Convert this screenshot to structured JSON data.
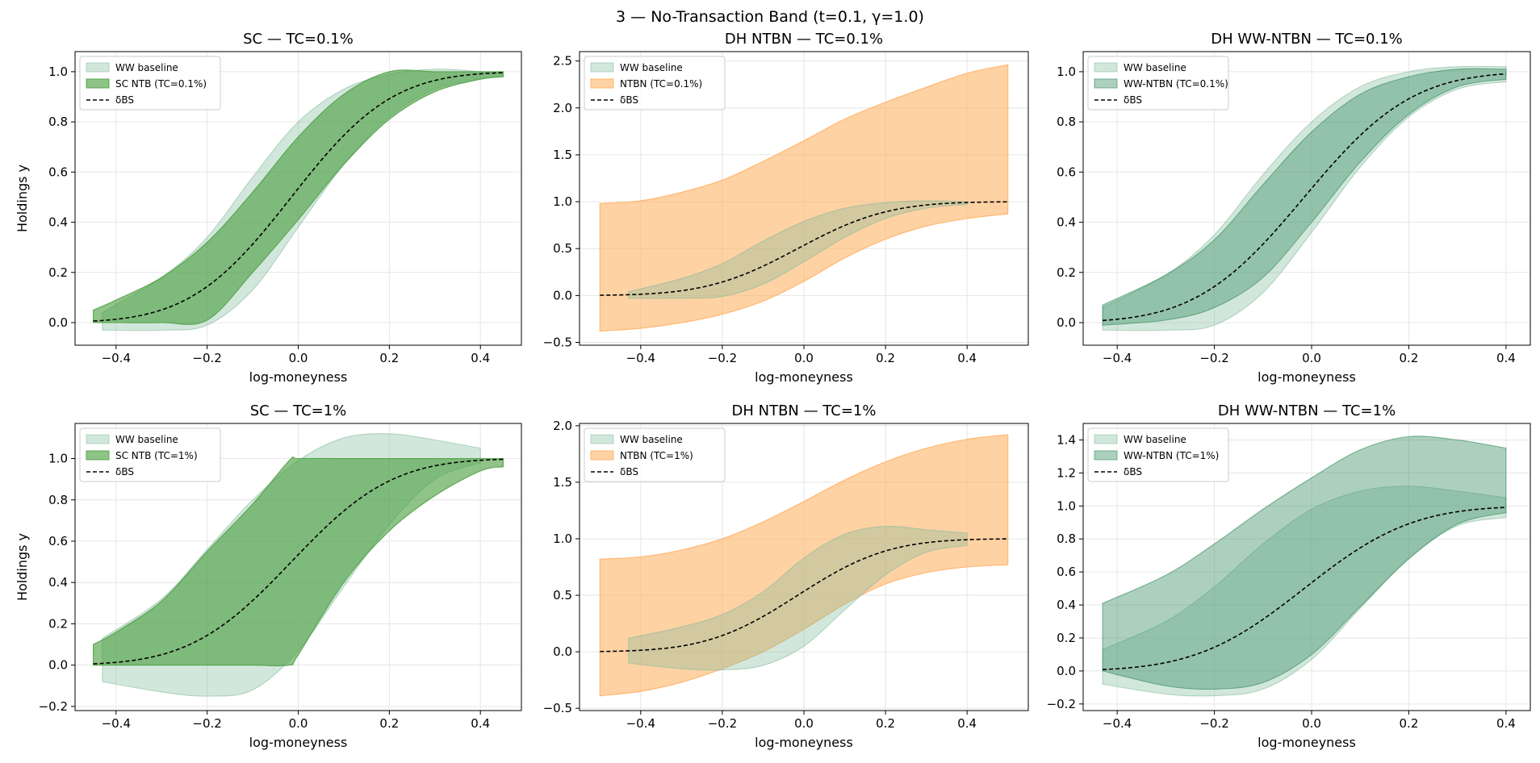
{
  "figure": {
    "title": "3 — No-Transaction Band  (t=0.1, γ=1.0)"
  },
  "colors": {
    "ww_fill": "#7fb99a",
    "sc_fill": "#4a9e3f",
    "ntbn_fill": "#ffad5a",
    "wwntbn_fill": "#3c8f63",
    "delta_line": "#000000",
    "grid": "#e6e6e6"
  },
  "chart_data": [
    {
      "type": "area",
      "title": "SC — TC=0.1%",
      "xlabel": "log-moneyness",
      "ylabel": "Holdings y",
      "xlim": [
        -0.49,
        0.49
      ],
      "ylim": [
        -0.09,
        1.08
      ],
      "xticks": [
        -0.4,
        -0.2,
        0.0,
        0.2,
        0.4
      ],
      "xtick_labels": [
        "−0.4",
        "−0.2",
        "0.0",
        "0.2",
        "0.4"
      ],
      "yticks": [
        0.0,
        0.2,
        0.4,
        0.6,
        0.8,
        1.0
      ],
      "ytick_labels": [
        "0.0",
        "0.2",
        "0.4",
        "0.6",
        "0.8",
        "1.0"
      ],
      "legend": {
        "position": "top-left",
        "entries": [
          "WW baseline",
          "SC NTB (TC=0.1%)",
          "δBS"
        ]
      },
      "series": [
        {
          "name": "WW baseline",
          "style": "ww",
          "x": [
            -0.43,
            -0.3,
            -0.2,
            -0.1,
            0.0,
            0.1,
            0.2,
            0.3,
            0.4,
            0.45
          ],
          "lower": [
            -0.03,
            -0.03,
            -0.01,
            0.13,
            0.38,
            0.63,
            0.82,
            0.93,
            0.97,
            0.98
          ],
          "upper": [
            0.04,
            0.18,
            0.34,
            0.58,
            0.8,
            0.93,
            0.99,
            1.01,
            1.0,
            0.99
          ]
        },
        {
          "name": "SC NTB (TC=0.1%)",
          "style": "sc",
          "x": [
            -0.45,
            -0.4,
            -0.3,
            -0.2,
            -0.1,
            0.0,
            0.1,
            0.2,
            0.3,
            0.4,
            0.45
          ],
          "lower": [
            0.0,
            0.0,
            0.0,
            0.01,
            0.2,
            0.41,
            0.63,
            0.81,
            0.92,
            0.97,
            0.98
          ],
          "upper": [
            0.05,
            0.09,
            0.18,
            0.32,
            0.52,
            0.74,
            0.91,
            1.0,
            1.0,
            1.0,
            1.0
          ]
        }
      ],
      "delta": {
        "name": "δBS",
        "x_range": [
          -0.45,
          0.45
        ]
      }
    },
    {
      "type": "area",
      "title": "DH NTBN — TC=0.1%",
      "xlabel": "log-moneyness",
      "ylabel": "",
      "xlim": [
        -0.55,
        0.55
      ],
      "ylim": [
        -0.53,
        2.6
      ],
      "xticks": [
        -0.4,
        -0.2,
        0.0,
        0.2,
        0.4
      ],
      "xtick_labels": [
        "−0.4",
        "−0.2",
        "0.0",
        "0.2",
        "0.4"
      ],
      "yticks": [
        -0.5,
        0.0,
        0.5,
        1.0,
        1.5,
        2.0,
        2.5
      ],
      "ytick_labels": [
        "−0.5",
        "0.0",
        "0.5",
        "1.0",
        "1.5",
        "2.0",
        "2.5"
      ],
      "legend": {
        "position": "top-left",
        "entries": [
          "WW baseline",
          "NTBN (TC=0.1%)",
          "δBS"
        ]
      },
      "series": [
        {
          "name": "NTBN (TC=0.1%)",
          "style": "ntbn",
          "x": [
            -0.5,
            -0.4,
            -0.3,
            -0.2,
            -0.1,
            0.0,
            0.1,
            0.2,
            0.3,
            0.4,
            0.5
          ],
          "lower": [
            -0.38,
            -0.35,
            -0.29,
            -0.2,
            -0.06,
            0.15,
            0.4,
            0.6,
            0.74,
            0.82,
            0.87
          ],
          "upper": [
            0.98,
            1.01,
            1.1,
            1.23,
            1.43,
            1.65,
            1.88,
            2.06,
            2.22,
            2.37,
            2.46
          ]
        },
        {
          "name": "WW baseline",
          "style": "ww",
          "x": [
            -0.43,
            -0.3,
            -0.2,
            -0.1,
            0.0,
            0.1,
            0.2,
            0.3,
            0.4
          ],
          "lower": [
            -0.03,
            -0.03,
            -0.01,
            0.12,
            0.36,
            0.62,
            0.82,
            0.93,
            0.97
          ],
          "upper": [
            0.04,
            0.18,
            0.34,
            0.58,
            0.79,
            0.93,
            0.99,
            1.01,
            1.0
          ]
        }
      ],
      "delta": {
        "name": "δBS",
        "x_range": [
          -0.5,
          0.5
        ]
      }
    },
    {
      "type": "area",
      "title": "DH WW-NTBN — TC=0.1%",
      "xlabel": "log-moneyness",
      "ylabel": "",
      "xlim": [
        -0.47,
        0.45
      ],
      "ylim": [
        -0.09,
        1.08
      ],
      "xticks": [
        -0.4,
        -0.2,
        0.0,
        0.2,
        0.4
      ],
      "xtick_labels": [
        "−0.4",
        "−0.2",
        "0.0",
        "0.2",
        "0.4"
      ],
      "yticks": [
        0.0,
        0.2,
        0.4,
        0.6,
        0.8,
        1.0
      ],
      "ytick_labels": [
        "0.0",
        "0.2",
        "0.4",
        "0.6",
        "0.8",
        "1.0"
      ],
      "legend": {
        "position": "top-left",
        "entries": [
          "WW baseline",
          "WW-NTBN (TC=0.1%)",
          "δBS"
        ]
      },
      "series": [
        {
          "name": "WW baseline",
          "style": "ww",
          "x": [
            -0.43,
            -0.3,
            -0.2,
            -0.1,
            0.0,
            0.1,
            0.2,
            0.3,
            0.4
          ],
          "lower": [
            -0.03,
            -0.03,
            -0.01,
            0.12,
            0.36,
            0.62,
            0.82,
            0.93,
            0.96
          ],
          "upper": [
            0.06,
            0.19,
            0.35,
            0.59,
            0.8,
            0.94,
            1.0,
            1.02,
            1.02
          ]
        },
        {
          "name": "WW-NTBN (TC=0.1%)",
          "style": "wwntbn",
          "x": [
            -0.43,
            -0.3,
            -0.2,
            -0.1,
            0.0,
            0.1,
            0.2,
            0.3,
            0.4
          ],
          "lower": [
            -0.01,
            0.01,
            0.06,
            0.18,
            0.4,
            0.64,
            0.83,
            0.94,
            0.97
          ],
          "upper": [
            0.07,
            0.19,
            0.33,
            0.55,
            0.76,
            0.91,
            0.98,
            1.01,
            1.01
          ]
        }
      ],
      "delta": {
        "name": "δBS",
        "x_range": [
          -0.43,
          0.4
        ]
      }
    },
    {
      "type": "area",
      "title": "SC — TC=1%",
      "xlabel": "log-moneyness",
      "ylabel": "Holdings y",
      "xlim": [
        -0.49,
        0.49
      ],
      "ylim": [
        -0.22,
        1.17
      ],
      "xticks": [
        -0.4,
        -0.2,
        0.0,
        0.2,
        0.4
      ],
      "xtick_labels": [
        "−0.4",
        "−0.2",
        "0.0",
        "0.2",
        "0.4"
      ],
      "yticks": [
        -0.2,
        0.0,
        0.2,
        0.4,
        0.6,
        0.8,
        1.0
      ],
      "ytick_labels": [
        "−0.2",
        "0.0",
        "0.2",
        "0.4",
        "0.6",
        "0.8",
        "1.0"
      ],
      "legend": {
        "position": "top-left",
        "entries": [
          "WW baseline",
          "SC NTB (TC=1%)",
          "δBS"
        ]
      },
      "series": [
        {
          "name": "WW baseline",
          "style": "ww",
          "x": [
            -0.43,
            -0.3,
            -0.2,
            -0.1,
            0.0,
            0.1,
            0.2,
            0.3,
            0.4
          ],
          "lower": [
            -0.08,
            -0.13,
            -0.15,
            -0.12,
            0.07,
            0.38,
            0.68,
            0.9,
            0.98
          ],
          "upper": [
            0.13,
            0.32,
            0.56,
            0.8,
            0.99,
            1.1,
            1.12,
            1.09,
            1.05
          ]
        },
        {
          "name": "SC NTB (TC=1%)",
          "style": "sc",
          "x": [
            -0.45,
            -0.4,
            -0.3,
            -0.2,
            -0.1,
            -0.02,
            0.0,
            0.1,
            0.2,
            0.3,
            0.4,
            0.45
          ],
          "lower": [
            0.0,
            0.0,
            0.0,
            0.0,
            0.0,
            0.0,
            0.05,
            0.4,
            0.65,
            0.82,
            0.94,
            0.96
          ],
          "upper": [
            0.1,
            0.16,
            0.31,
            0.55,
            0.78,
            0.99,
            1.0,
            1.0,
            1.0,
            1.0,
            1.0,
            1.0
          ]
        }
      ],
      "delta": {
        "name": "δBS",
        "x_range": [
          -0.45,
          0.45
        ]
      }
    },
    {
      "type": "area",
      "title": "DH NTBN — TC=1%",
      "xlabel": "log-moneyness",
      "ylabel": "",
      "xlim": [
        -0.55,
        0.55
      ],
      "ylim": [
        -0.52,
        2.02
      ],
      "xticks": [
        -0.4,
        -0.2,
        0.0,
        0.2,
        0.4
      ],
      "xtick_labels": [
        "−0.4",
        "−0.2",
        "0.0",
        "0.2",
        "0.4"
      ],
      "yticks": [
        -0.5,
        0.0,
        0.5,
        1.0,
        1.5,
        2.0
      ],
      "ytick_labels": [
        "−0.5",
        "0.0",
        "0.5",
        "1.0",
        "1.5",
        "2.0"
      ],
      "legend": {
        "position": "top-left",
        "entries": [
          "WW baseline",
          "NTBN (TC=1%)",
          "δBS"
        ]
      },
      "series": [
        {
          "name": "NTBN (TC=1%)",
          "style": "ntbn",
          "x": [
            -0.5,
            -0.4,
            -0.3,
            -0.2,
            -0.1,
            0.0,
            0.1,
            0.2,
            0.3,
            0.4,
            0.5
          ],
          "lower": [
            -0.39,
            -0.35,
            -0.27,
            -0.15,
            0.0,
            0.2,
            0.42,
            0.6,
            0.7,
            0.75,
            0.77
          ],
          "upper": [
            0.82,
            0.84,
            0.9,
            1.0,
            1.15,
            1.33,
            1.52,
            1.68,
            1.8,
            1.88,
            1.92
          ]
        },
        {
          "name": "WW baseline",
          "style": "ww",
          "x": [
            -0.43,
            -0.3,
            -0.2,
            -0.1,
            0.0,
            0.1,
            0.2,
            0.3,
            0.4
          ],
          "lower": [
            -0.1,
            -0.15,
            -0.16,
            -0.12,
            0.05,
            0.37,
            0.68,
            0.88,
            0.94
          ],
          "upper": [
            0.12,
            0.22,
            0.33,
            0.53,
            0.83,
            1.04,
            1.11,
            1.08,
            1.05
          ]
        }
      ],
      "delta": {
        "name": "δBS",
        "x_range": [
          -0.5,
          0.5
        ]
      }
    },
    {
      "type": "area",
      "title": "DH WW-NTBN — TC=1%",
      "xlabel": "log-moneyness",
      "ylabel": "",
      "xlim": [
        -0.47,
        0.45
      ],
      "ylim": [
        -0.24,
        1.5
      ],
      "xticks": [
        -0.4,
        -0.2,
        0.0,
        0.2,
        0.4
      ],
      "xtick_labels": [
        "−0.4",
        "−0.2",
        "0.0",
        "0.2",
        "0.4"
      ],
      "yticks": [
        -0.2,
        0.0,
        0.2,
        0.4,
        0.6,
        0.8,
        1.0,
        1.2,
        1.4
      ],
      "ytick_labels": [
        "−0.2",
        "0.0",
        "0.2",
        "0.4",
        "0.6",
        "0.8",
        "1.0",
        "1.2",
        "1.4"
      ],
      "legend": {
        "position": "top-left",
        "entries": [
          "WW baseline",
          "WW-NTBN (TC=1%)",
          "δBS"
        ]
      },
      "series": [
        {
          "name": "WW baseline",
          "style": "ww",
          "x": [
            -0.43,
            -0.3,
            -0.2,
            -0.1,
            0.0,
            0.1,
            0.2,
            0.3,
            0.4
          ],
          "lower": [
            -0.08,
            -0.14,
            -0.15,
            -0.11,
            0.07,
            0.38,
            0.68,
            0.88,
            0.93
          ],
          "upper": [
            0.13,
            0.3,
            0.51,
            0.77,
            0.98,
            1.09,
            1.12,
            1.09,
            1.05
          ]
        },
        {
          "name": "WW-NTBN (TC=1%)",
          "style": "wwntbn",
          "x": [
            -0.43,
            -0.3,
            -0.2,
            -0.1,
            0.0,
            0.1,
            0.2,
            0.3,
            0.4
          ],
          "lower": [
            0.0,
            -0.09,
            -0.11,
            -0.07,
            0.1,
            0.39,
            0.68,
            0.89,
            0.96
          ],
          "upper": [
            0.41,
            0.58,
            0.77,
            0.98,
            1.17,
            1.34,
            1.42,
            1.4,
            1.35
          ]
        }
      ],
      "delta": {
        "name": "δBS",
        "x_range": [
          -0.43,
          0.4
        ]
      }
    }
  ]
}
